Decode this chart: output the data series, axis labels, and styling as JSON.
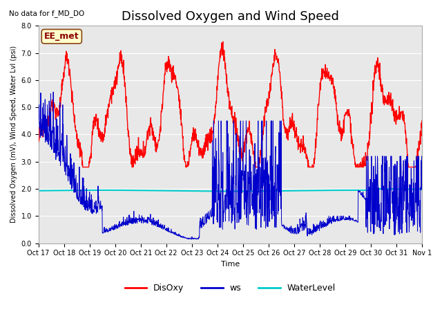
{
  "title": "Dissolved Oxygen and Wind Speed",
  "top_left_text": "No data for f_MD_DO",
  "annotation_text": "EE_met",
  "xlabel": "Time",
  "ylabel": "Dissolved Oxygen (mV), Wind Speed, Water Lvl (psi)",
  "ylim": [
    0.0,
    8.0
  ],
  "yticks": [
    0.0,
    1.0,
    2.0,
    3.0,
    4.0,
    5.0,
    6.0,
    7.0,
    8.0
  ],
  "xtick_labels": [
    "Oct 17",
    "Oct 18",
    "Oct 19",
    "Oct 20",
    "Oct 21",
    "Oct 22",
    "Oct 23",
    "Oct 24",
    "Oct 25",
    "Oct 26",
    "Oct 27",
    "Oct 28",
    "Oct 29",
    "Oct 30",
    "Oct 31",
    "Nov 1"
  ],
  "disoxy_color": "#FF0000",
  "ws_color": "#0000CC",
  "waterlevel_color": "#00CCCC",
  "waterlevel_value": 1.93,
  "background_color": "#E8E8E8",
  "plot_bg_color": "#E8E8E8",
  "legend_labels": [
    "DisOxy",
    "ws",
    "WaterLevel"
  ],
  "title_fontsize": 13,
  "annotation_fontsize": 9,
  "tick_fontsize": 7,
  "ylabel_fontsize": 7,
  "xlabel_fontsize": 8
}
